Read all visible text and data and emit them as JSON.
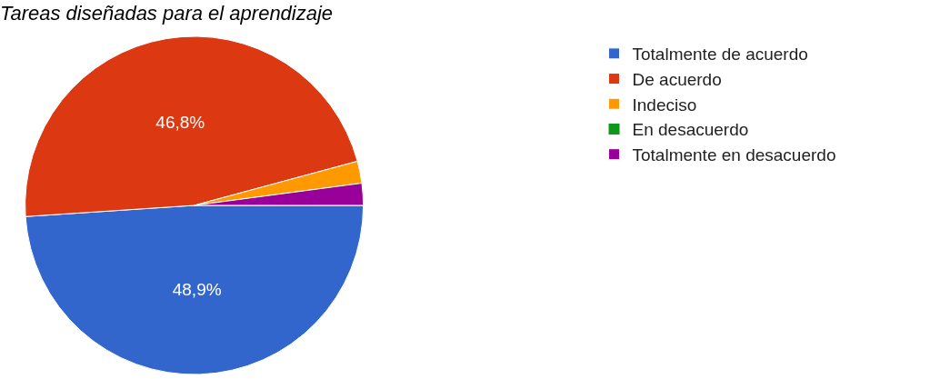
{
  "chart_data": {
    "type": "pie",
    "title": "Tareas diseñadas para el aprendizaje",
    "categories": [
      "Totalmente de acuerdo",
      "De acuerdo",
      "Indeciso",
      "En desacuerdo",
      "Totalmente en desacuerdo"
    ],
    "values": [
      48.9,
      46.8,
      2.1,
      0,
      2.1
    ],
    "value_labels": [
      "48,9%",
      "46,8%",
      null,
      null,
      null
    ],
    "colors": [
      "#3366cc",
      "#dc3912",
      "#ff9900",
      "#109618",
      "#990099"
    ],
    "legend": "top right"
  }
}
